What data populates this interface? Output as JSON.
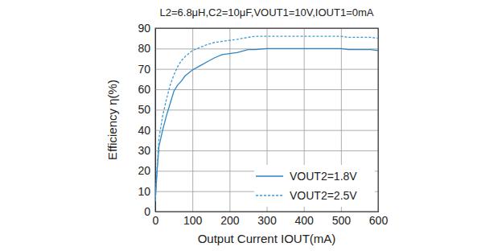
{
  "chart_data": {
    "type": "line",
    "title": "L2=6.8μH,C2=10μF,VOUT1=10V,IOUT1=0mA",
    "x_label": "Output Current IOUT(mA)",
    "y_label": "Efficiency η(%)",
    "x": [
      0,
      5,
      10,
      20,
      30,
      40,
      50,
      60,
      70,
      80,
      90,
      100,
      120,
      140,
      160,
      180,
      200,
      220,
      250,
      270,
      300,
      400,
      500,
      520,
      550,
      580,
      600
    ],
    "series": [
      {
        "name": "VOUT2=1.8V",
        "color": "#2e86c1",
        "line_style": "solid",
        "values": [
          5,
          20,
          32,
          40,
          47,
          53,
          59,
          62,
          64,
          66.5,
          68,
          69.5,
          71.5,
          73.5,
          75.5,
          77,
          77.5,
          78,
          79.5,
          79.5,
          80,
          80,
          80,
          79.5,
          79.5,
          79.5,
          79
        ]
      },
      {
        "name": "VOUT2=2.5V",
        "color": "#3f9bd6",
        "line_style": "dashed",
        "values": [
          5,
          22,
          36,
          47,
          55,
          62,
          67,
          71,
          74,
          76,
          77.5,
          79,
          80.5,
          82,
          83,
          83.5,
          84,
          84.5,
          85.5,
          86,
          86,
          86,
          86,
          85.5,
          85.5,
          85.5,
          85
        ]
      }
    ],
    "xlim": [
      0,
      600
    ],
    "xticks": [
      0,
      100,
      200,
      300,
      400,
      500,
      600
    ],
    "ylim": [
      0,
      90
    ],
    "yticks": [
      0,
      10,
      20,
      30,
      40,
      50,
      60,
      70,
      80,
      90
    ],
    "grid": true,
    "legend": "lower right"
  }
}
